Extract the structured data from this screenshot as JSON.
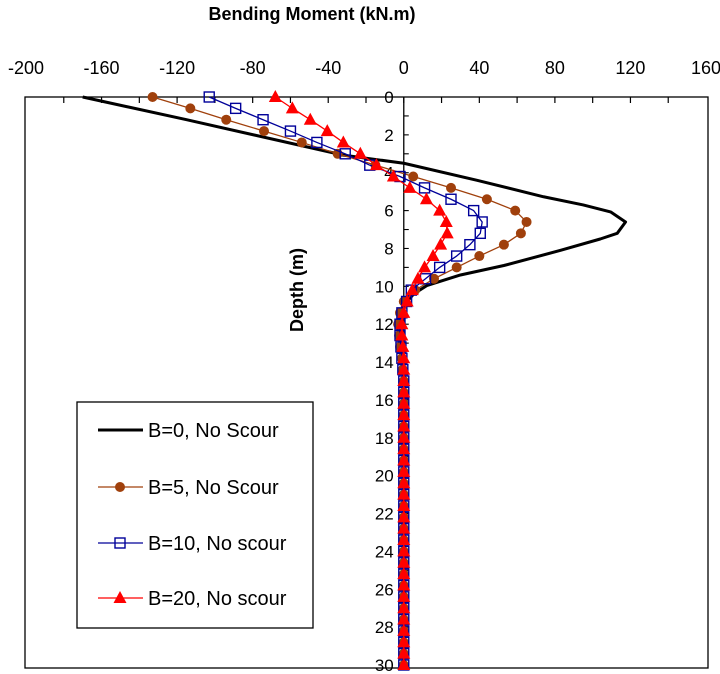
{
  "chart_data": {
    "type": "line",
    "title": "Bending Moment (kN.m)",
    "xlabel": "Bending Moment (kN.m)",
    "ylabel": "Depth (m)",
    "xlim": [
      -200,
      160
    ],
    "ylim": [
      0,
      30
    ],
    "y_inverted": true,
    "x_axis_position": "top",
    "x_ticks": [
      -200,
      -160,
      -120,
      -80,
      -40,
      0,
      40,
      80,
      120,
      160
    ],
    "y_ticks": [
      0,
      2,
      4,
      6,
      8,
      10,
      12,
      14,
      16,
      18,
      20,
      22,
      24,
      26,
      28,
      30
    ],
    "grid": false,
    "legend_position": "bottom-left",
    "marker_depth_step": 0.6,
    "series": [
      {
        "name": "B=0, No Scour",
        "color": "#000000",
        "marker": "none",
        "depth": [
          0,
          1.2,
          3.07,
          3.5,
          4.4,
          5.27,
          5.7,
          6.07,
          6.6,
          7.2,
          7.5,
          8.1,
          8.9,
          9.4,
          9.95,
          10.4,
          11.0,
          11.6,
          12.4,
          13.5,
          15.0,
          30.0
        ],
        "moment": [
          -170,
          -115,
          -32,
          0,
          38.8,
          74,
          95,
          109.5,
          117.4,
          113,
          104,
          83,
          53,
          30,
          12.4,
          5.3,
          0,
          -2,
          -3,
          -1,
          0,
          0
        ]
      },
      {
        "name": "B=5, No Scour",
        "color": "#a0400c",
        "marker": "circle",
        "moment": [
          -133,
          -113,
          -94,
          -74,
          -54,
          -35,
          -15,
          5,
          25,
          44,
          59,
          65,
          62,
          53,
          40,
          28,
          16,
          6,
          0,
          -2,
          -3,
          -2.5,
          -2,
          -1,
          -0.5,
          0,
          0,
          0,
          0,
          0,
          0,
          0,
          0,
          0,
          0,
          0,
          0,
          0,
          0,
          0,
          0,
          0,
          0,
          0,
          0,
          0,
          0,
          0,
          0,
          0,
          0
        ]
      },
      {
        "name": "B=10, No scour",
        "color": "#000099",
        "marker": "square-open",
        "moment": [
          -103,
          -89,
          -74.5,
          -60,
          -46,
          -31,
          -18,
          -2,
          11,
          25,
          37,
          41.5,
          40.5,
          35,
          28,
          19,
          11.5,
          4,
          1.5,
          -1,
          -2,
          -2,
          -1.5,
          -1,
          -0.5,
          0,
          0,
          0,
          0,
          0,
          0,
          0,
          0,
          0,
          0,
          0,
          0,
          0,
          0,
          0,
          0,
          0,
          0,
          0,
          0,
          0,
          0,
          0,
          0,
          0,
          0
        ]
      },
      {
        "name": "B=20, No scour",
        "color": "#ff0000",
        "marker": "triangle",
        "moment": [
          -68,
          -59,
          -49.5,
          -40.5,
          -32,
          -23,
          -14.5,
          -5.5,
          3.2,
          12,
          19,
          22.5,
          23,
          19.5,
          15.5,
          11,
          7.5,
          4.5,
          1.8,
          0,
          -1,
          -1,
          -0.5,
          0,
          0,
          0,
          0,
          0,
          0,
          0,
          0,
          0,
          0,
          0,
          0,
          0,
          0,
          0,
          0,
          0,
          0,
          0,
          0,
          0,
          0,
          0,
          0,
          0,
          0,
          0,
          0
        ]
      }
    ]
  }
}
